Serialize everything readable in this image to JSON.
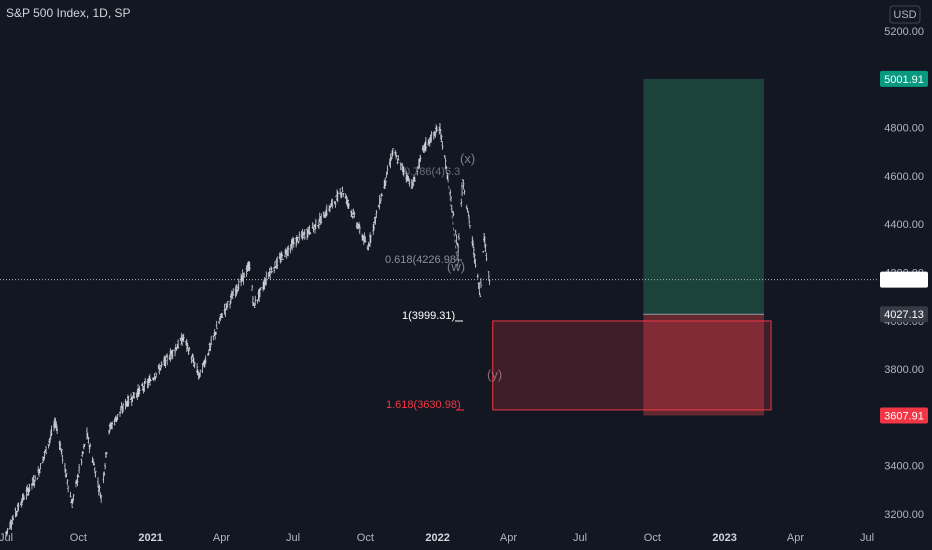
{
  "header": {
    "title": "S&P 500 Index, 1D, SP"
  },
  "axis": {
    "currency": "USD"
  },
  "chart_data": {
    "type": "line",
    "title": "S&P 500 Index, 1D, SP",
    "ylim": [
      3150,
      5300
    ],
    "y_ticks": [
      3200,
      3400,
      3600,
      3800,
      4000,
      4200,
      4400,
      4600,
      4800,
      5000,
      5200
    ],
    "y_tick_labels": [
      "3200.00",
      "3400.00",
      "3600.00",
      "3800.00",
      "4000.00",
      "4200.00",
      "4400.00",
      "4600.00",
      "4800.00",
      "5000.00",
      "5200.00"
    ],
    "x_range": [
      "2020-07-01",
      "2023-07-20"
    ],
    "x_ticks": [
      {
        "date": "2020-07-01",
        "label": "Jul",
        "bold": false
      },
      {
        "date": "2020-10-01",
        "label": "Oct",
        "bold": false
      },
      {
        "date": "2021-01-01",
        "label": "2021",
        "bold": true
      },
      {
        "date": "2021-04-01",
        "label": "Apr",
        "bold": false
      },
      {
        "date": "2021-07-01",
        "label": "Jul",
        "bold": false
      },
      {
        "date": "2021-10-01",
        "label": "Oct",
        "bold": false
      },
      {
        "date": "2022-01-01",
        "label": "2022",
        "bold": true
      },
      {
        "date": "2022-04-01",
        "label": "Apr",
        "bold": false
      },
      {
        "date": "2022-07-01",
        "label": "Jul",
        "bold": false
      },
      {
        "date": "2022-10-01",
        "label": "Oct",
        "bold": false
      },
      {
        "date": "2023-01-01",
        "label": "2023",
        "bold": true
      },
      {
        "date": "2023-04-01",
        "label": "Apr",
        "bold": false
      },
      {
        "date": "2023-07-01",
        "label": "Jul",
        "bold": false
      }
    ],
    "series": [
      {
        "points": [
          {
            "x": "2020-07-01",
            "y": 3120
          },
          {
            "x": "2020-07-20",
            "y": 3250
          },
          {
            "x": "2020-08-10",
            "y": 3360
          },
          {
            "x": "2020-09-02",
            "y": 3580
          },
          {
            "x": "2020-09-23",
            "y": 3240
          },
          {
            "x": "2020-10-12",
            "y": 3530
          },
          {
            "x": "2020-10-30",
            "y": 3270
          },
          {
            "x": "2020-11-09",
            "y": 3550
          },
          {
            "x": "2020-12-01",
            "y": 3660
          },
          {
            "x": "2020-12-31",
            "y": 3750
          },
          {
            "x": "2021-02-12",
            "y": 3930
          },
          {
            "x": "2021-03-04",
            "y": 3770
          },
          {
            "x": "2021-04-01",
            "y": 4020
          },
          {
            "x": "2021-05-07",
            "y": 4230
          },
          {
            "x": "2021-05-12",
            "y": 4060
          },
          {
            "x": "2021-06-01",
            "y": 4200
          },
          {
            "x": "2021-07-01",
            "y": 4320
          },
          {
            "x": "2021-08-01",
            "y": 4400
          },
          {
            "x": "2021-09-02",
            "y": 4540
          },
          {
            "x": "2021-10-04",
            "y": 4300
          },
          {
            "x": "2021-11-05",
            "y": 4700
          },
          {
            "x": "2021-11-30",
            "y": 4560
          },
          {
            "x": "2021-12-15",
            "y": 4720
          },
          {
            "x": "2022-01-04",
            "y": 4800
          },
          {
            "x": "2022-01-27",
            "y": 4300
          },
          {
            "x": "2022-02-02",
            "y": 4590
          },
          {
            "x": "2022-02-24",
            "y": 4110
          },
          {
            "x": "2022-03-01",
            "y": 4350
          },
          {
            "x": "2022-03-08",
            "y": 4170
          }
        ]
      }
    ],
    "last_price": 4170.69
  },
  "annotations": {
    "wave_x": "(x)",
    "wave_w": "(w)",
    "wave_y": "(y)",
    "fib_hidden_partial": "0.786(4)6.3",
    "fib_0618": "0.618(4226.98)",
    "fib_1": "1(3999.31)",
    "fib_1618": "1.618(3630.98)"
  },
  "position": {
    "entry": 4027.13,
    "target": 5001.91,
    "stop": 3607.91,
    "zone_top": 3999.31,
    "zone_bottom": 3630.98
  },
  "price_badges": {
    "target": "5001.91",
    "current": "4170.69",
    "entry": "4027.13",
    "stop": "3607.91"
  },
  "colors": {
    "background": "#131722",
    "candles": "#d1d4dc",
    "target_zone": "#1d4b41",
    "stop_zone": "#6e2a33",
    "target_badge": "#089981",
    "stop_badge": "#f23645",
    "current_badge": "#ffffff",
    "entry_badge": "#363a45"
  }
}
